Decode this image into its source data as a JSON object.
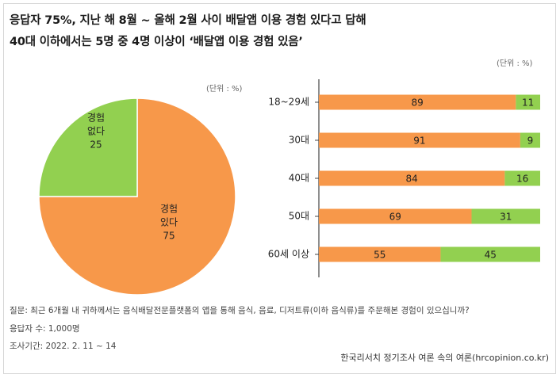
{
  "title_line1": "응답자 75%, 지난 해 8월 ~ 올해 2월 사이 배달앱 이용 경험 있다고 답해",
  "title_line2": "40대 이하에서는 5명 중 4명 이상이 ‘배달앱 이용 경험 있음’",
  "unit_label": "(단위 : %)",
  "footer": {
    "question": "질문:  최근 6개월 내 귀하께서는 음식배달전문플랫폼의 앱을 통해 음식, 음료, 디저트류(이하 음식류)를 주문해본 경험이 있으십니까?",
    "respondents": "응답자 수: 1,000명",
    "period": "조사기간: 2022. 2. 11 ~ 14",
    "source": "한국리서치 정기조사 여론 속의 여론(hrcopinion.co.kr)"
  },
  "colors": {
    "orange": "#f7984a",
    "green": "#92d050",
    "axis": "#444444"
  },
  "chart_data": [
    {
      "type": "pie",
      "slices": [
        {
          "label_lines": [
            "경험",
            "있다"
          ],
          "value": 75,
          "value_text": "75",
          "color": "#f7984a"
        },
        {
          "label_lines": [
            "경험",
            "없다"
          ],
          "value": 25,
          "value_text": "25",
          "color": "#92d050"
        }
      ]
    },
    {
      "type": "bar",
      "orientation": "horizontal",
      "stacked": true,
      "categories": [
        "18~29세",
        "30대",
        "40대",
        "50대",
        "60세 이상"
      ],
      "series": [
        {
          "values": [
            89,
            91,
            84,
            69,
            55
          ],
          "labels": [
            "89",
            "91",
            "84",
            "69",
            "55"
          ],
          "color": "#f7984a"
        },
        {
          "values": [
            11,
            9,
            16,
            31,
            45
          ],
          "labels": [
            "11",
            "9",
            "16",
            "31",
            "45"
          ],
          "color": "#92d050"
        }
      ],
      "xlim": [
        0,
        100
      ]
    }
  ]
}
